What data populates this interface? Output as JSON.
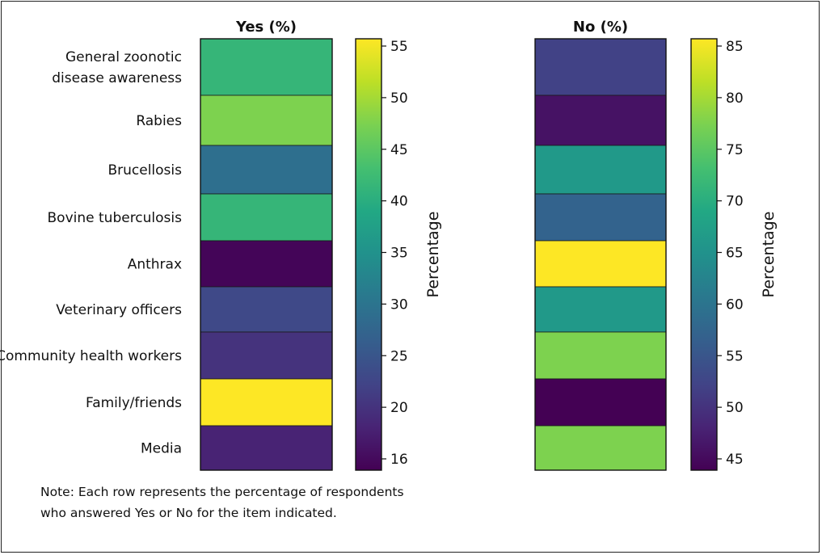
{
  "chart_data": [
    {
      "type": "heatmap",
      "title": "Yes (%)",
      "categories": [
        [
          "General zoonotic",
          "disease awareness"
        ],
        [
          "Rabies"
        ],
        [
          "Brucellosis"
        ],
        [
          "Bovine tuberculosis"
        ],
        [
          "Anthrax"
        ],
        [
          "Veterinary officers"
        ],
        [
          "Community health workers"
        ],
        [
          "Family/friends"
        ],
        [
          "Media"
        ]
      ],
      "values": [
        41,
        47,
        29,
        41,
        14.5,
        23,
        20,
        55,
        18
      ],
      "colorbar": {
        "label": "Percentage",
        "range": [
          14,
          55
        ],
        "ticks": [
          55,
          50,
          45,
          40,
          35,
          30,
          25,
          20,
          16
        ]
      }
    },
    {
      "type": "heatmap",
      "title": "No (%)",
      "values": [
        52,
        46,
        66,
        57,
        85,
        66,
        77,
        44,
        77
      ],
      "colorbar": {
        "label": "Percentage",
        "range": [
          44,
          85
        ],
        "ticks": [
          85,
          80,
          75,
          70,
          65,
          60,
          55,
          50,
          45
        ]
      }
    }
  ],
  "note": [
    "Note: Each row represents the percentage of respondents",
    "who answered Yes or No for the item indicated."
  ]
}
